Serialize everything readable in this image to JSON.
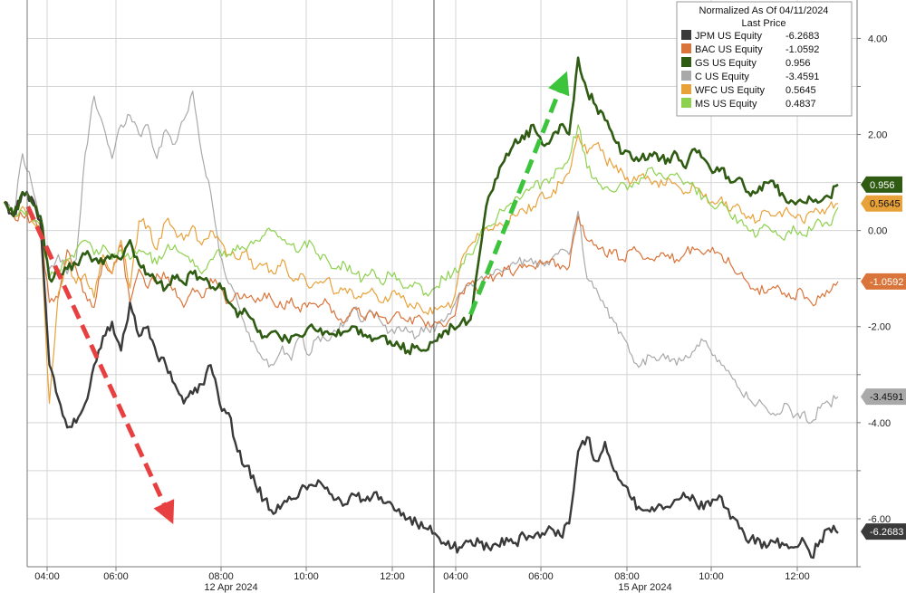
{
  "chart_data": {
    "type": "line",
    "legend": {
      "title": "Normalized As Of 04/11/2024",
      "subtitle": "Last Price",
      "placement": "top-right"
    },
    "y_ticks": [
      "4.00",
      "2.00",
      "0.00",
      "-2.00",
      "-4.00",
      "-6.00"
    ],
    "y_tick_values": [
      4,
      2,
      0,
      -2,
      -4,
      -6
    ],
    "ylim": [
      -7.0,
      4.8
    ],
    "x_ticks": [
      "04:00",
      "06:00",
      "08:00",
      "10:00",
      "12:00",
      "04:00",
      "06:00",
      "08:00",
      "10:00",
      "12:00"
    ],
    "x_date_labels": [
      "12 Apr 2024",
      "15 Apr 2024"
    ],
    "grid": true,
    "series": [
      {
        "name": "JPM US Equity",
        "last": "-6.2683",
        "color": "#3a3a3a",
        "width": 2.4,
        "values": [
          0.6,
          0.3,
          0.8,
          0.7,
          0.2,
          -2.8,
          -3.5,
          -4.1,
          -4.0,
          -3.6,
          -2.8,
          -2.2,
          -1.9,
          -2.5,
          -1.5,
          -2.2,
          -2.0,
          -2.6,
          -2.8,
          -3.2,
          -3.6,
          -3.4,
          -3.2,
          -2.8,
          -3.6,
          -3.8,
          -4.6,
          -4.9,
          -5.3,
          -5.6,
          -5.9,
          -5.7,
          -5.6,
          -5.4,
          -5.3,
          -5.2,
          -5.35,
          -5.6,
          -5.7,
          -5.5,
          -5.6,
          -5.55,
          -5.55,
          -5.65,
          -5.8,
          -6.0,
          -6.1,
          -6.2,
          -6.3,
          -6.5,
          -6.6,
          -6.6,
          -6.45,
          -6.5,
          -6.6,
          -6.55,
          -6.4,
          -6.5,
          -6.35,
          -6.4,
          -6.3,
          -6.2,
          -6.35,
          -6.1,
          -4.6,
          -4.3,
          -4.8,
          -4.4,
          -5.0,
          -5.3,
          -5.6,
          -5.8,
          -5.85,
          -5.7,
          -5.75,
          -5.6,
          -5.55,
          -5.6,
          -5.8,
          -5.6,
          -5.55,
          -6.0,
          -6.2,
          -6.5,
          -6.4,
          -6.6,
          -6.5,
          -6.55,
          -6.6,
          -6.4,
          -6.8,
          -6.45,
          -6.2,
          -6.3
        ]
      },
      {
        "name": "BAC US Equity",
        "last": "-1.0592",
        "color": "#d9743a",
        "width": 1.2,
        "values": [
          0.6,
          0.3,
          0.3,
          0.2,
          0.0,
          -1.5,
          -1.4,
          -0.4,
          -0.8,
          -1.3,
          -1.6,
          -0.6,
          -0.9,
          -0.3,
          -1.5,
          -0.8,
          -1.2,
          -0.9,
          -1.0,
          -1.2,
          -1.6,
          -1.2,
          -1.4,
          -1.0,
          -1.2,
          -1.5,
          -1.3,
          -1.4,
          -1.5,
          -1.3,
          -1.5,
          -1.6,
          -1.4,
          -1.7,
          -1.5,
          -1.6,
          -1.5,
          -1.8,
          -1.9,
          -1.6,
          -1.8,
          -1.7,
          -1.8,
          -1.9,
          -1.7,
          -1.9,
          -1.8,
          -2.0,
          -1.9,
          -2.0,
          -1.8,
          -1.3,
          -1.1,
          -1.2,
          -1.0,
          -0.9,
          -0.8,
          -0.85,
          -0.7,
          -0.75,
          -0.7,
          -0.6,
          -0.8,
          -0.75,
          0.3,
          -0.2,
          -0.3,
          -0.5,
          -0.4,
          -0.6,
          -0.4,
          -0.5,
          -0.6,
          -0.55,
          -0.5,
          -0.6,
          -0.45,
          -0.4,
          -0.5,
          -0.35,
          -0.5,
          -0.7,
          -0.9,
          -1.1,
          -1.2,
          -1.3,
          -1.2,
          -1.3,
          -1.4,
          -1.25,
          -1.5,
          -1.4,
          -1.3,
          -1.06
        ]
      },
      {
        "name": "GS US Equity",
        "last": "0.956",
        "color": "#2f5c12",
        "width": 2.6,
        "values": [
          0.6,
          0.3,
          0.8,
          0.6,
          0.3,
          -1.0,
          -0.9,
          -0.8,
          -0.7,
          -0.5,
          -0.6,
          -0.7,
          -0.5,
          -0.6,
          -0.2,
          -0.7,
          -0.9,
          -1.1,
          -1.2,
          -1.0,
          -1.1,
          -0.9,
          -1.0,
          -1.2,
          -1.1,
          -1.5,
          -1.8,
          -1.7,
          -2.0,
          -2.2,
          -2.1,
          -2.3,
          -2.2,
          -2.2,
          -2.0,
          -2.1,
          -2.1,
          -2.2,
          -2.1,
          -2.0,
          -2.2,
          -2.3,
          -2.2,
          -2.3,
          -2.4,
          -2.5,
          -2.4,
          -2.5,
          -2.3,
          -2.1,
          -2.0,
          -1.9,
          -1.85,
          -0.5,
          0.7,
          1.1,
          1.6,
          1.9,
          1.9,
          2.2,
          1.8,
          1.9,
          2.2,
          2.0,
          3.6,
          2.9,
          2.6,
          2.3,
          1.9,
          1.6,
          1.5,
          1.5,
          1.6,
          1.45,
          1.5,
          1.6,
          1.3,
          1.7,
          1.5,
          1.2,
          1.3,
          1.0,
          1.1,
          0.8,
          0.8,
          1.0,
          0.9,
          0.7,
          0.6,
          0.6,
          0.65,
          0.6,
          0.7,
          0.956
        ]
      },
      {
        "name": "C US Equity",
        "last": "-3.4591",
        "color": "#a9a9a9",
        "width": 1.2,
        "values": [
          0.6,
          0.3,
          1.6,
          1.0,
          0.2,
          -0.8,
          -0.5,
          -0.9,
          -0.6,
          1.6,
          2.8,
          2.2,
          1.5,
          2.2,
          2.4,
          2.0,
          2.2,
          1.5,
          2.1,
          1.8,
          2.3,
          2.9,
          1.6,
          0.8,
          -0.5,
          -1.1,
          -1.5,
          -2.1,
          -2.4,
          -2.7,
          -2.8,
          -2.4,
          -2.7,
          -2.2,
          -2.6,
          -2.2,
          -2.3,
          -2.1,
          -1.9,
          -1.6,
          -1.9,
          -1.7,
          -1.9,
          -2.1,
          -2.0,
          -2.1,
          -2.2,
          -2.0,
          -2.1,
          -1.9,
          -1.6,
          -1.3,
          -1.1,
          -1.0,
          -0.9,
          -0.8,
          -0.8,
          -0.7,
          -0.6,
          -0.7,
          -0.65,
          -0.6,
          -0.4,
          -0.5,
          0.4,
          -1.0,
          -1.2,
          -1.6,
          -1.9,
          -2.2,
          -2.6,
          -2.8,
          -2.6,
          -2.7,
          -2.6,
          -2.8,
          -2.6,
          -2.5,
          -2.3,
          -2.6,
          -2.8,
          -3.0,
          -3.3,
          -3.5,
          -3.6,
          -3.7,
          -3.85,
          -3.6,
          -3.9,
          -3.8,
          -4.0,
          -3.7,
          -3.6,
          -3.46
        ]
      },
      {
        "name": "WFC US Equity",
        "last": "0.5645",
        "color": "#e8a23a",
        "width": 1.2,
        "values": [
          0.6,
          0.3,
          0.5,
          0.2,
          0.0,
          -3.6,
          -1.3,
          -0.6,
          -1.1,
          -0.9,
          -1.4,
          -0.5,
          -0.9,
          -0.2,
          -1.2,
          0.2,
          0.1,
          -0.4,
          0.2,
          0.0,
          -0.2,
          0.1,
          -0.3,
          0.0,
          -0.2,
          -0.5,
          -0.6,
          -0.4,
          -0.8,
          -0.7,
          -0.9,
          -0.6,
          -1.0,
          -0.9,
          -1.2,
          -1.1,
          -1.0,
          -1.3,
          -1.2,
          -1.4,
          -1.3,
          -1.2,
          -1.5,
          -1.4,
          -1.3,
          -1.6,
          -1.5,
          -1.7,
          -1.6,
          -1.6,
          -1.5,
          -0.6,
          -0.3,
          -0.1,
          0.0,
          0.1,
          0.2,
          0.3,
          0.4,
          0.5,
          0.8,
          0.7,
          1.0,
          1.2,
          2.0,
          1.6,
          1.8,
          1.5,
          1.3,
          1.2,
          1.0,
          1.15,
          1.05,
          0.9,
          1.1,
          0.95,
          0.8,
          0.9,
          0.7,
          0.6,
          0.7,
          0.4,
          0.5,
          0.3,
          0.2,
          0.4,
          0.3,
          0.4,
          0.3,
          0.2,
          0.4,
          0.35,
          0.5,
          0.56
        ]
      },
      {
        "name": "MS US Equity",
        "last": "0.4837",
        "color": "#8ed14f",
        "width": 1.2,
        "values": [
          0.6,
          0.3,
          0.4,
          0.3,
          0.1,
          -1.0,
          -0.8,
          -0.6,
          -0.4,
          -0.2,
          -0.5,
          -0.3,
          -0.6,
          -0.4,
          -0.6,
          -0.4,
          -0.5,
          -0.7,
          -0.4,
          -0.3,
          -0.5,
          -0.6,
          -0.9,
          -0.6,
          -0.4,
          -0.5,
          -0.3,
          -0.4,
          -0.2,
          -0.1,
          0.0,
          -0.2,
          -0.3,
          -0.4,
          -0.2,
          -0.5,
          -0.6,
          -0.8,
          -0.7,
          -0.9,
          -1.0,
          -0.8,
          -1.1,
          -0.9,
          -1.0,
          -1.2,
          -1.1,
          -1.3,
          -1.2,
          -1.0,
          -0.9,
          -0.7,
          -0.5,
          -0.1,
          0.1,
          0.3,
          0.5,
          0.7,
          0.8,
          0.9,
          1.0,
          1.1,
          1.3,
          1.5,
          2.2,
          1.3,
          1.1,
          0.9,
          0.8,
          1.0,
          0.9,
          1.1,
          1.3,
          1.2,
          1.1,
          1.2,
          1.0,
          0.9,
          0.7,
          0.5,
          0.6,
          0.3,
          0.2,
          0.0,
          -0.1,
          0.1,
          0.0,
          -0.2,
          0.1,
          -0.1,
          0.0,
          0.2,
          0.1,
          0.48
        ]
      }
    ],
    "annotations": [
      {
        "type": "arrow",
        "color": "#e84040",
        "from": [
          2.6,
          0.5
        ],
        "to": [
          18.3,
          -5.9
        ]
      },
      {
        "type": "arrow",
        "color": "#3cc43c",
        "from": [
          52.0,
          -1.75
        ],
        "to": [
          62.3,
          3.1
        ]
      }
    ]
  }
}
